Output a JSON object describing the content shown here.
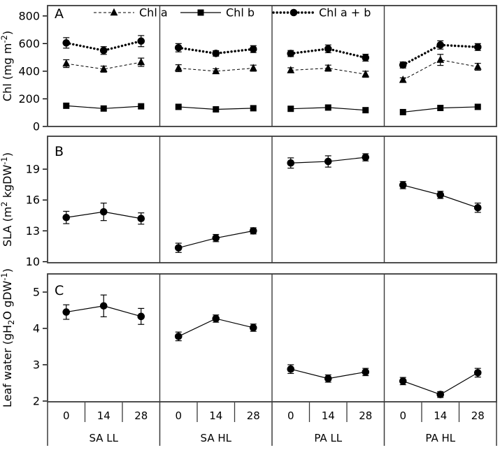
{
  "figure_colors": {
    "ink": "#000000",
    "frame": "#3a3a3a",
    "background": "#ffffff"
  },
  "x_tick_labels": [
    "0",
    "14",
    "28"
  ],
  "group_labels": [
    "SA LL",
    "SA HL",
    "PA LL",
    "PA HL"
  ],
  "legend": {
    "position": "top-inside-panel-A",
    "items": [
      {
        "label": "Chl a",
        "series": "chl_a"
      },
      {
        "label": "Chl b",
        "series": "chl_b"
      },
      {
        "label": "Chl a + b",
        "series": "chl_ab"
      }
    ]
  },
  "chart_data": [
    {
      "type": "line",
      "panel_letter": "A",
      "ylabel_plain": "Chl (mg m-2)",
      "ylabel_parts": [
        {
          "t": "Chl (mg m"
        },
        {
          "t": "-2",
          "sup": true
        },
        {
          "t": ")"
        }
      ],
      "yticks": [
        0,
        200,
        400,
        600,
        800
      ],
      "ylim": [
        0,
        875
      ],
      "x": [
        0,
        14,
        28
      ],
      "groups": [
        "SA LL",
        "SA HL",
        "PA LL",
        "PA HL"
      ],
      "grid": false,
      "series": [
        {
          "id": "chl_ab",
          "name": "Chl a + b",
          "marker": "circle",
          "line": "dotted",
          "values": [
            [
              605,
              550,
              618
            ],
            [
              570,
              529,
              560
            ],
            [
              528,
              562,
              498
            ],
            [
              445,
              590,
              575
            ]
          ],
          "errors": [
            [
              38,
              28,
              40
            ],
            [
              30,
              20,
              25
            ],
            [
              22,
              28,
              25
            ],
            [
              22,
              30,
              25
            ]
          ]
        },
        {
          "id": "chl_a",
          "name": "Chl a",
          "marker": "triangle",
          "line": "dashed",
          "values": [
            [
              455,
              415,
              465
            ],
            [
              422,
              400,
              422
            ],
            [
              407,
              422,
              378
            ],
            [
              337,
              482,
              432
            ]
          ],
          "errors": [
            [
              28,
              22,
              30
            ],
            [
              25,
              18,
              22
            ],
            [
              18,
              22,
              22
            ],
            [
              15,
              40,
              25
            ]
          ]
        },
        {
          "id": "chl_b",
          "name": "Chl b",
          "marker": "square",
          "line": "solid",
          "values": [
            [
              150,
              130,
              146
            ],
            [
              142,
              124,
              132
            ],
            [
              128,
              137,
              118
            ],
            [
              104,
              134,
              142
            ]
          ],
          "errors": [
            [
              0,
              0,
              0
            ],
            [
              0,
              0,
              0
            ],
            [
              0,
              0,
              0
            ],
            [
              0,
              0,
              0
            ]
          ]
        }
      ]
    },
    {
      "type": "line",
      "panel_letter": "B",
      "ylabel_plain": "SLA (m2 kgDW-1)",
      "ylabel_parts": [
        {
          "t": "SLA (m"
        },
        {
          "t": "2",
          "sup": true
        },
        {
          "t": " kgDW"
        },
        {
          "t": "-1",
          "sup": true
        },
        {
          "t": ")"
        }
      ],
      "yticks": [
        10,
        13,
        16,
        19
      ],
      "ylim": [
        9.9,
        22.2
      ],
      "x": [
        0,
        14,
        28
      ],
      "groups": [
        "SA LL",
        "SA HL",
        "PA LL",
        "PA HL"
      ],
      "grid": false,
      "series": [
        {
          "id": "sla",
          "name": "SLA",
          "marker": "circle",
          "line": "solid",
          "values": [
            [
              14.3,
              14.85,
              14.2
            ],
            [
              11.35,
              12.3,
              13.0
            ],
            [
              19.6,
              19.75,
              20.15
            ],
            [
              17.45,
              16.5,
              15.25
            ]
          ],
          "errors": [
            [
              0.6,
              0.85,
              0.55
            ],
            [
              0.45,
              0.35,
              0.3
            ],
            [
              0.5,
              0.55,
              0.35
            ],
            [
              0.35,
              0.35,
              0.45
            ]
          ]
        }
      ]
    },
    {
      "type": "line",
      "panel_letter": "C",
      "ylabel_plain": "Leaf water (gH2O gDW-1)",
      "ylabel_parts": [
        {
          "t": "Leaf water (gH"
        },
        {
          "t": "2",
          "sub": true
        },
        {
          "t": "O gDW"
        },
        {
          "t": "-1",
          "sup": true
        },
        {
          "t": ")"
        }
      ],
      "yticks": [
        2,
        3,
        4,
        5
      ],
      "ylim": [
        1.98,
        5.5
      ],
      "x": [
        0,
        14,
        28
      ],
      "groups": [
        "SA LL",
        "SA HL",
        "PA LL",
        "PA HL"
      ],
      "grid": false,
      "series": [
        {
          "id": "leaf_water",
          "name": "Leaf water",
          "marker": "circle",
          "line": "solid",
          "values": [
            [
              4.45,
              4.62,
              4.33
            ],
            [
              3.78,
              4.27,
              4.02
            ],
            [
              2.88,
              2.62,
              2.8
            ],
            [
              2.55,
              2.18,
              2.78
            ]
          ],
          "errors": [
            [
              0.2,
              0.3,
              0.22
            ],
            [
              0.12,
              0.1,
              0.1
            ],
            [
              0.12,
              0.1,
              0.1
            ],
            [
              0.1,
              0.08,
              0.12
            ]
          ]
        }
      ]
    }
  ]
}
